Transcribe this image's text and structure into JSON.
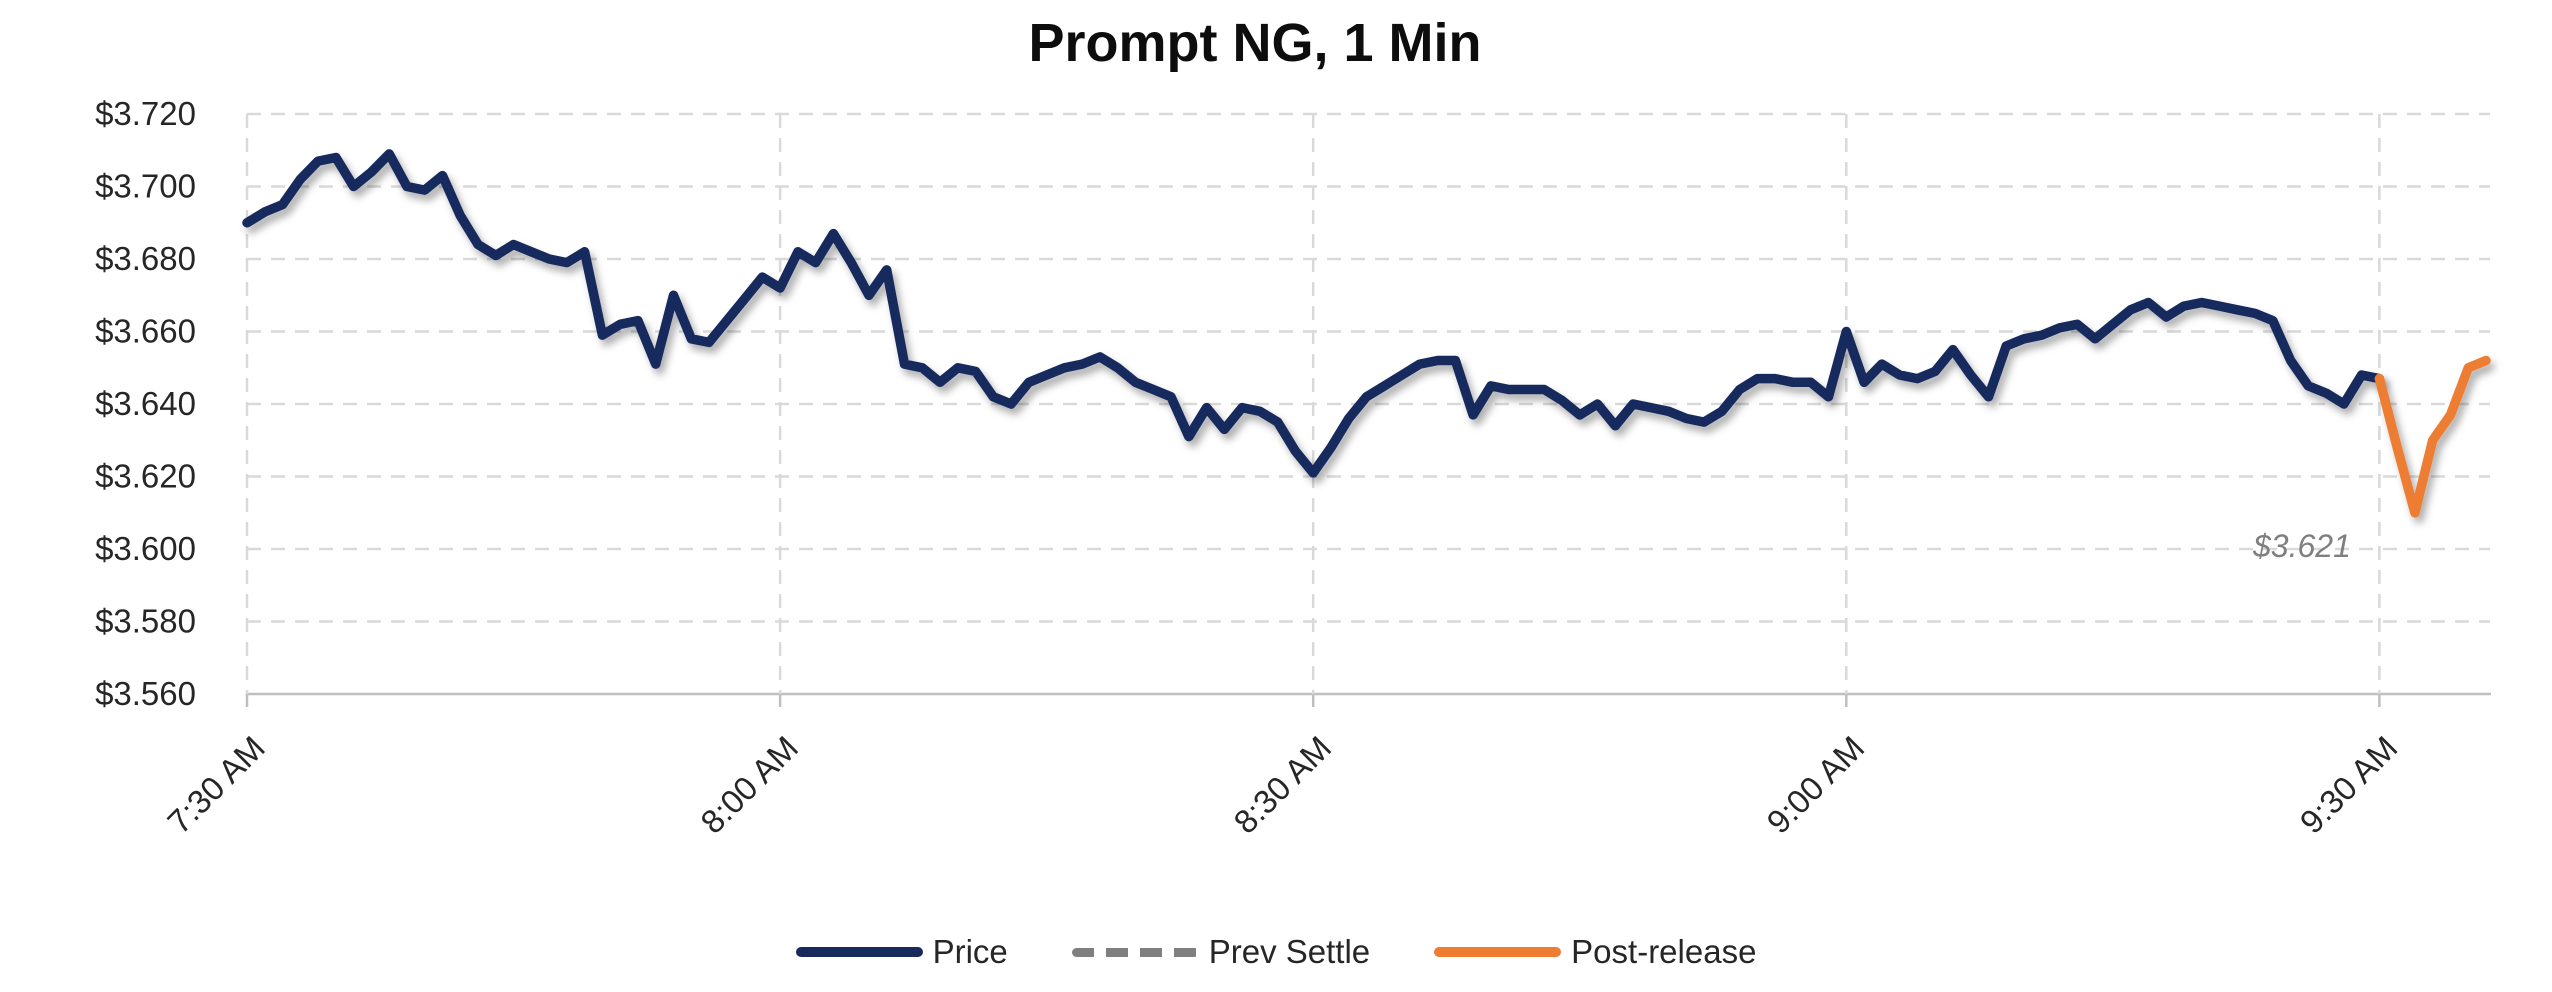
{
  "title": "Prompt NG, 1 Min",
  "colors": {
    "price": "#17295d",
    "post_release": "#ec7d33",
    "prev_settle": "#7f7f7f",
    "gridline": "#d9d9d9",
    "axis": "#bfbfbf",
    "tick_label": "#262626",
    "annotation": "#7f7f7f"
  },
  "legend": {
    "items": [
      {
        "label": "Price",
        "color": "#17295d",
        "style": "solid"
      },
      {
        "label": "Prev Settle",
        "color": "#7f7f7f",
        "style": "dashed"
      },
      {
        "label": "Post-release",
        "color": "#ec7d33",
        "style": "solid"
      }
    ]
  },
  "chart_data": {
    "type": "line",
    "title": "Prompt NG, 1 Min",
    "x_axis": {
      "tick_labels": [
        "7:30 AM",
        "8:00 AM",
        "8:30 AM",
        "9:00 AM",
        "9:30 AM"
      ],
      "tick_minutes": [
        0,
        30,
        60,
        90,
        120
      ],
      "minutes_range": [
        0,
        126.3
      ],
      "grid": true
    },
    "y_axis": {
      "tick_labels": [
        "$3.560",
        "$3.580",
        "$3.600",
        "$3.620",
        "$3.640",
        "$3.660",
        "$3.680",
        "$3.700",
        "$3.720"
      ],
      "tick_values": [
        3.56,
        3.58,
        3.6,
        3.62,
        3.64,
        3.66,
        3.68,
        3.7,
        3.72
      ],
      "range": [
        3.56,
        3.72
      ],
      "grid": true
    },
    "prev_settle": {
      "label": "$3.621",
      "value": 3.621,
      "color": "#7f7f7f"
    },
    "series": [
      {
        "name": "Price",
        "color": "#17295d",
        "style": "solid",
        "start_minute": 0,
        "step_minutes": 1,
        "values": [
          3.69,
          3.693,
          3.695,
          3.702,
          3.707,
          3.708,
          3.7,
          3.704,
          3.709,
          3.7,
          3.699,
          3.703,
          3.692,
          3.684,
          3.681,
          3.684,
          3.682,
          3.68,
          3.679,
          3.682,
          3.659,
          3.662,
          3.663,
          3.651,
          3.67,
          3.658,
          3.657,
          3.663,
          3.669,
          3.675,
          3.672,
          3.682,
          3.679,
          3.687,
          3.679,
          3.67,
          3.677,
          3.651,
          3.65,
          3.646,
          3.65,
          3.649,
          3.642,
          3.64,
          3.646,
          3.648,
          3.65,
          3.651,
          3.653,
          3.65,
          3.646,
          3.644,
          3.642,
          3.631,
          3.639,
          3.633,
          3.639,
          3.638,
          3.635,
          3.627,
          3.621,
          3.628,
          3.636,
          3.642,
          3.645,
          3.648,
          3.651,
          3.652,
          3.652,
          3.637,
          3.645,
          3.644,
          3.644,
          3.644,
          3.641,
          3.637,
          3.64,
          3.634,
          3.64,
          3.639,
          3.638,
          3.636,
          3.635,
          3.638,
          3.644,
          3.647,
          3.647,
          3.646,
          3.646,
          3.642,
          3.66,
          3.646,
          3.651,
          3.648,
          3.647,
          3.649,
          3.655,
          3.648,
          3.642,
          3.656,
          3.658,
          3.659,
          3.661,
          3.662,
          3.658,
          3.662,
          3.666,
          3.668,
          3.664,
          3.667,
          3.668,
          3.667,
          3.666,
          3.665,
          3.663,
          3.652,
          3.645,
          3.643,
          3.64,
          3.648,
          3.647
        ]
      },
      {
        "name": "Post-release",
        "color": "#ec7d33",
        "style": "solid",
        "start_minute": 120,
        "step_minutes": 1,
        "values": [
          3.647,
          3.628,
          3.61,
          3.63,
          3.637,
          3.65,
          3.652
        ]
      }
    ]
  }
}
